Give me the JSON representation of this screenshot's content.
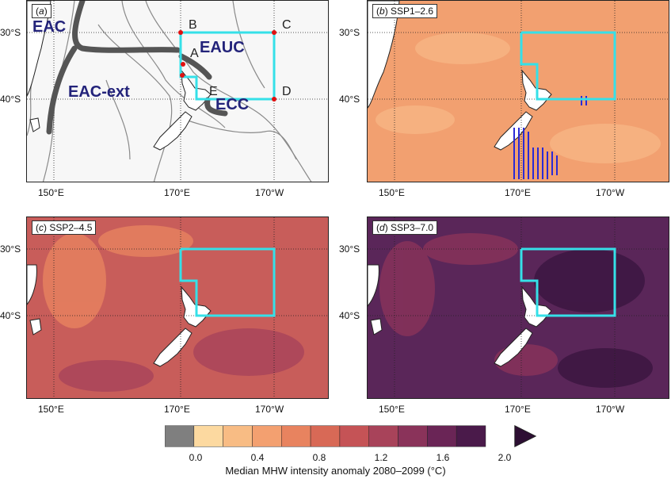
{
  "colors": {
    "box": "#35e0e8",
    "land": "#ffffff",
    "bg_a": "#f7f7f7",
    "b_fill": "#f2a070",
    "c_fill": "#c85d5a",
    "d_fill": "#5a2659",
    "current_text": "#23237a",
    "arrow": "#4d4d4d",
    "hatch": "#2a2ad6"
  },
  "lat_labels": [
    "30°S",
    "40°S"
  ],
  "lon_labels": [
    "150°E",
    "170°E",
    "170°W"
  ],
  "panels": {
    "a": {
      "letter": "a",
      "title": ""
    },
    "b": {
      "letter": "b",
      "title": "SSP1–2.6"
    },
    "c": {
      "letter": "c",
      "title": "SSP2–4.5"
    },
    "d": {
      "letter": "d",
      "title": "SSP3–7.0"
    }
  },
  "currents": [
    "EAC",
    "EAUC",
    "EAC-ext",
    "ECC"
  ],
  "points": [
    "A",
    "B",
    "C",
    "D",
    "E"
  ],
  "colorbar": {
    "colors": [
      "#7f7f7f",
      "#fcd9a0",
      "#f8bc84",
      "#f3a070",
      "#e8835f",
      "#d86956",
      "#c55356",
      "#a8435a",
      "#8a335a",
      "#6a2556",
      "#4a1a4a",
      "#2d0f33"
    ],
    "ticks": [
      "0.0",
      "0.4",
      "0.8",
      "1.2",
      "1.6",
      "2.0"
    ],
    "title": "Median MHW intensity anomaly 2080–2099 (°C)"
  }
}
